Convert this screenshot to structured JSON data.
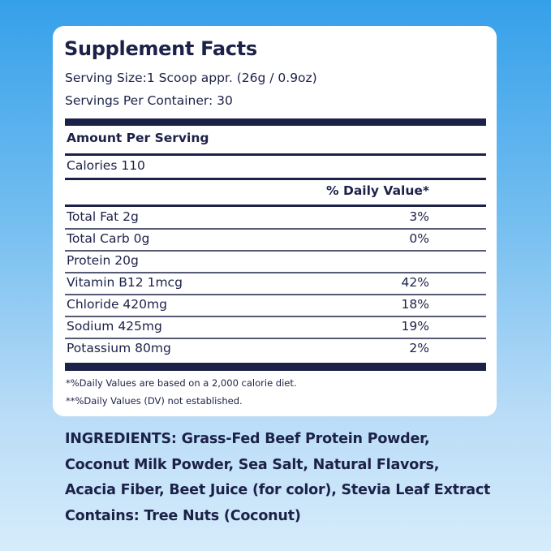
{
  "title": "Supplement Facts",
  "serving_size": "Serving Size:1 Scoop appr. (26g / 0.9oz)",
  "servings_per_container": "Servings Per Container: 30",
  "amount_per_serving": "Amount Per Serving",
  "calories": "Calories 110",
  "daily_value_header": "% Daily Value*",
  "nutrients": [
    {
      "label": "Total Fat 2g",
      "dv": "3%"
    },
    {
      "label": "Total Carb 0g",
      "dv": "0%"
    },
    {
      "label": "Protein 20g",
      "dv": ""
    },
    {
      "label": "Vitamin B12 1mcg",
      "dv": "42%"
    },
    {
      "label": "Chloride 420mg",
      "dv": "18%"
    },
    {
      "label": "Sodium 425mg",
      "dv": "19%"
    },
    {
      "label": "Potassium 80mg",
      "dv": "2%"
    }
  ],
  "footnotes": [
    "*%Daily Values are based on a 2,000 calorie diet.",
    "**%Daily Values (DV) not established."
  ],
  "ingredients": [
    "INGREDIENTS: Grass-Fed Beef Protein Powder,",
    "Coconut Milk Powder, Sea Salt, Natural Flavors,",
    "Acacia Fiber, Beet Juice (for color), Stevia Leaf Extract",
    "Contains: Tree Nuts (Coconut)"
  ]
}
